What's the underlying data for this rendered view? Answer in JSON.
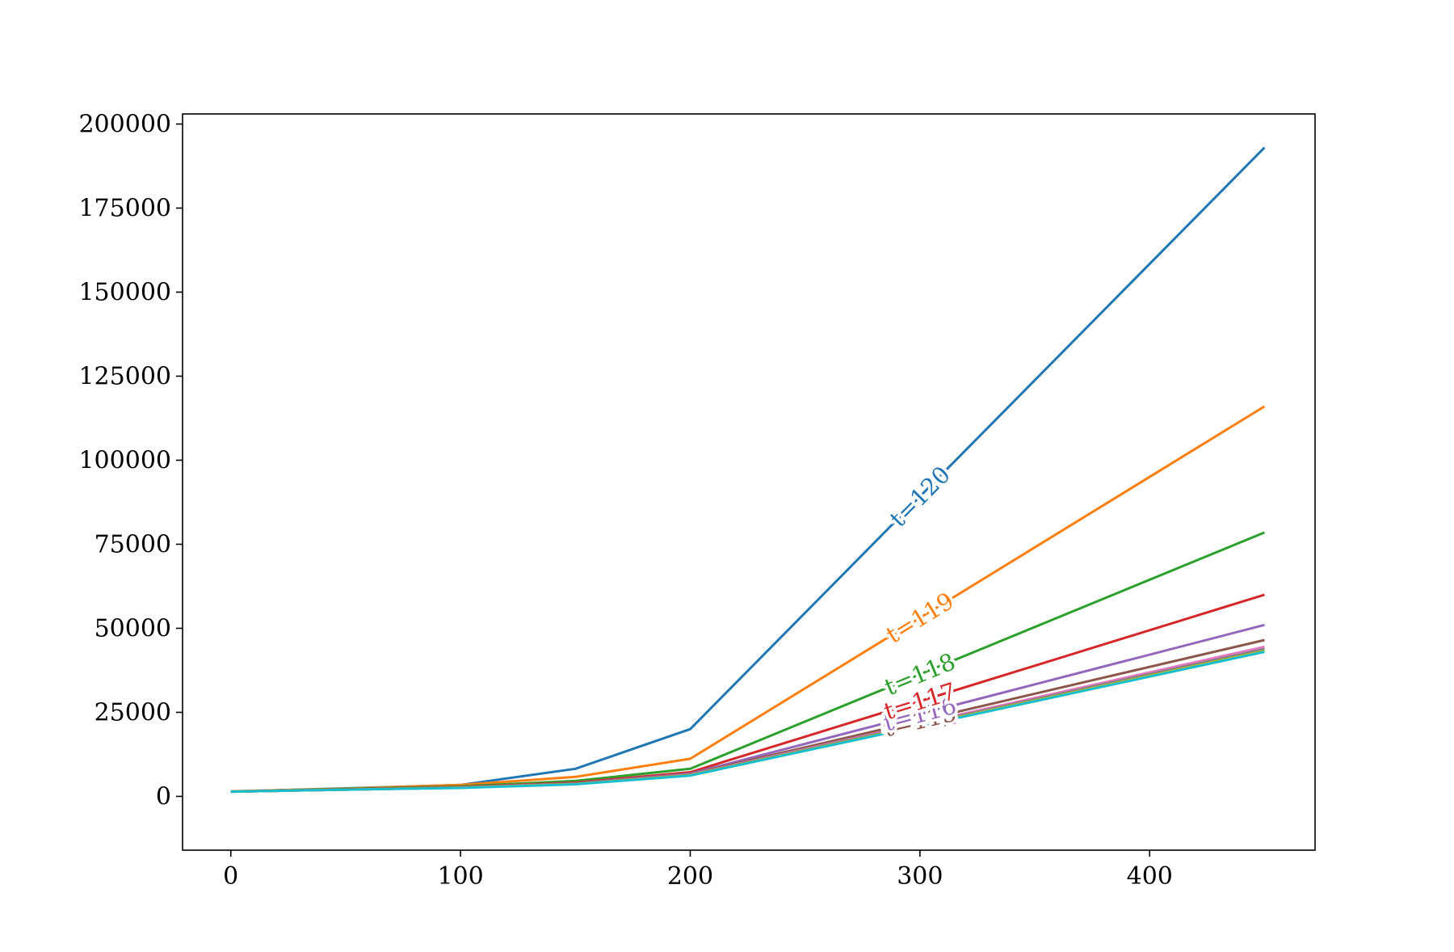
{
  "chart_data": {
    "type": "line",
    "title": "",
    "xlabel": "",
    "ylabel": "",
    "xlim": [
      -21,
      472
    ],
    "ylim": [
      -16000,
      203000
    ],
    "x_ticks": [
      0,
      100,
      200,
      300,
      400
    ],
    "y_ticks": [
      0,
      25000,
      50000,
      75000,
      100000,
      125000,
      150000,
      175000,
      200000
    ],
    "x": [
      0,
      50,
      100,
      150,
      200,
      450
    ],
    "grid": false,
    "legend": "none",
    "series": [
      {
        "name": "t=120",
        "color": "#1f77b4",
        "values": [
          1500,
          2400,
          3400,
          8200,
          20000,
          193000
        ],
        "label_x": 300
      },
      {
        "name": "t=119",
        "color": "#ff7f0e",
        "values": [
          1500,
          2300,
          3400,
          5800,
          11200,
          116000
        ],
        "label_x": 300
      },
      {
        "name": "t=118",
        "color": "#2ca02c",
        "values": [
          1400,
          2200,
          3000,
          4600,
          8200,
          78500
        ],
        "label_x": 300
      },
      {
        "name": "t=117",
        "color": "#d62728",
        "values": [
          1400,
          2100,
          2800,
          4100,
          7200,
          60000
        ],
        "label_x": 300
      },
      {
        "name": "t=116",
        "color": "#9467bd",
        "values": [
          1400,
          2000,
          2700,
          3900,
          6800,
          51000
        ],
        "label_x": 300
      },
      {
        "name": "t=115",
        "color": "#8c564b",
        "values": [
          1400,
          2000,
          2600,
          3800,
          6600,
          46500
        ],
        "label_x": 300
      },
      {
        "name": "t=114",
        "color": "#e377c2",
        "values": [
          1400,
          2000,
          2600,
          3700,
          6500,
          44500
        ],
        "label_x": 300
      },
      {
        "name": "t=113",
        "color": "#7f7f7f",
        "values": [
          1400,
          2000,
          2600,
          3700,
          6400,
          43800
        ],
        "label_x": 300
      },
      {
        "name": "t=112",
        "color": "#bcbd22",
        "values": [
          1400,
          2000,
          2600,
          3700,
          6300,
          43300
        ],
        "label_x": 300
      },
      {
        "name": "t=111",
        "color": "#17becf",
        "values": [
          1400,
          2000,
          2500,
          3600,
          6200,
          43000
        ],
        "label_x": 300
      }
    ]
  }
}
